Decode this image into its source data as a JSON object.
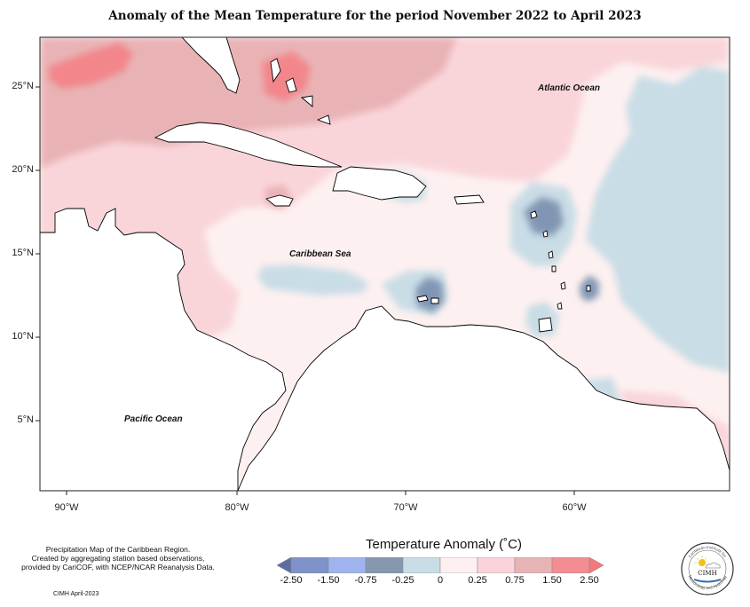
{
  "title": "Anomaly of the Mean Temperature for the period November 2022 to April 2023",
  "latitude_labels": [
    "25°N",
    "20°N",
    "15°N",
    "10°N",
    "5°N"
  ],
  "longitude_labels": [
    "90°W",
    "80°W",
    "70°W",
    "60°W"
  ],
  "regions": {
    "atlantic": "Atlantic Ocean",
    "caribbean": "Caribbean Sea",
    "pacific": "Pacific Ocean"
  },
  "source_note": [
    "Precipitation Map of the Caribbean Region.",
    "Created by aggregating station based observations,",
    "provided by CariCOF, with NCEP/NCAR Reanalysis Data."
  ],
  "credit": "CIMH April-2023",
  "legend": {
    "title": "Temperature Anomaly (˚C)",
    "tick_labels": [
      "-2.50",
      "-1.50",
      "-0.75",
      "-0.25",
      "0",
      "0.25",
      "0.75",
      "1.50",
      "2.50"
    ],
    "colors": [
      "#5a6ea3",
      "#7f92c9",
      "#9fb3ee",
      "#8598b0",
      "#c8dde6",
      "#fdf0f0",
      "#fad4da",
      "#e8b3b5",
      "#f48d91",
      "#f5787d"
    ]
  },
  "logo": {
    "text": "CIMH",
    "arc_top": "Caribbean Institute for",
    "arc_bottom": "Meteorology and Hydrology"
  },
  "map_colors": {
    "strong_warm": "#f2868b",
    "warm": "#e9b3b5",
    "light_warm": "#f9d5da",
    "near_zero": "#fdf0f0",
    "light_cool": "#c9dde6",
    "cool": "#8196b4",
    "strong_cool": "#6d81ad",
    "land": "#ffffff"
  }
}
